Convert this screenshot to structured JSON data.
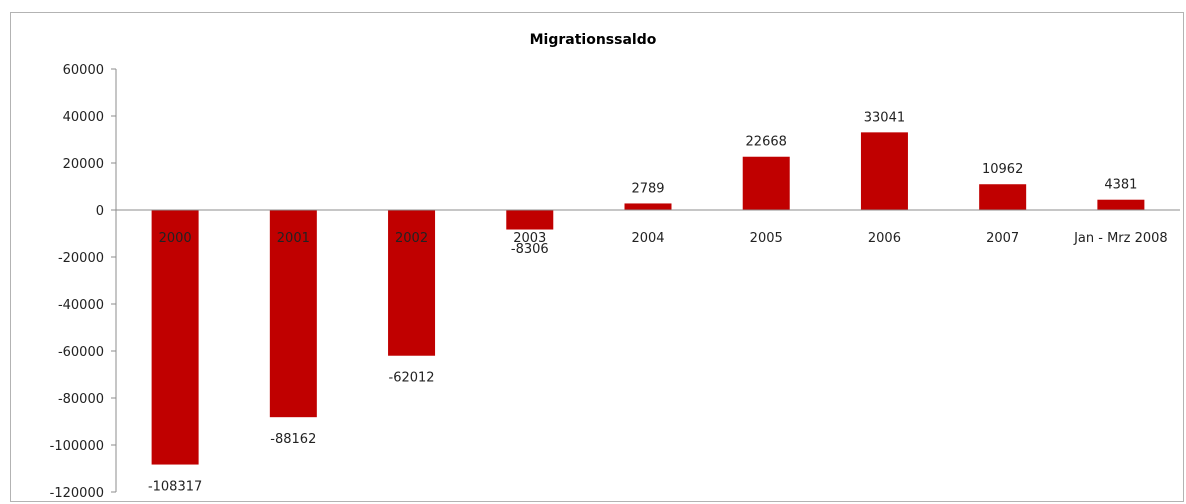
{
  "chart_data": {
    "type": "bar",
    "title": "Migrationssaldo",
    "categories": [
      "2000",
      "2001",
      "2002",
      "2003",
      "2004",
      "2005",
      "2006",
      "2007",
      "Jan - Mrz 2008"
    ],
    "values": [
      -108317,
      -88162,
      -62012,
      -8306,
      2789,
      22668,
      33041,
      10962,
      4381
    ],
    "data_labels": [
      "-108317",
      "-88162",
      "-62012",
      "-8306",
      "2789",
      "22668",
      "33041",
      "10962",
      "4381"
    ],
    "y_ticks": [
      "60000",
      "40000",
      "20000",
      "0",
      "-20000",
      "-40000",
      "-60000",
      "-80000",
      "-100000",
      "-120000"
    ],
    "ylim": [
      -120000,
      60000
    ],
    "xlabel": "",
    "ylabel": "",
    "legend": "none",
    "grid": false,
    "colors": {
      "bar": "#c00000",
      "axis": "#8c8c8c",
      "frame": "#b3b3b3"
    }
  }
}
